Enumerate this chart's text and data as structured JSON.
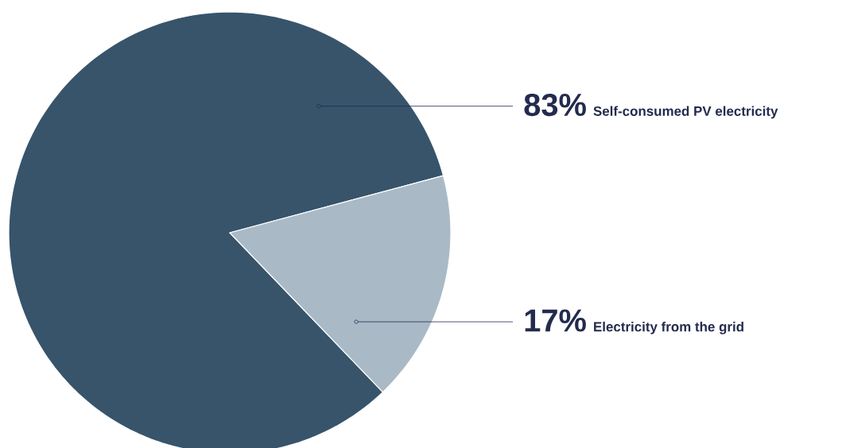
{
  "chart_data": {
    "type": "pie",
    "categories": [
      "Self-consumed PV electricity",
      "Electricity from the grid"
    ],
    "values": [
      83,
      17
    ],
    "colors": [
      "#37546b",
      "#a9bac6"
    ],
    "value_labels": [
      "83%",
      "17%"
    ]
  }
}
